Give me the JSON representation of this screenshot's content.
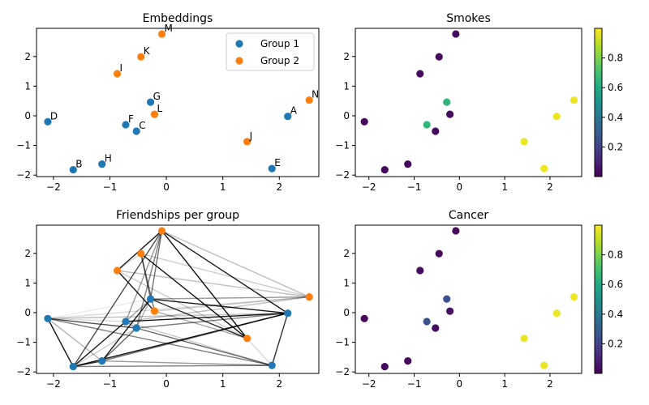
{
  "colors": {
    "group1": "#1f77b4",
    "group2": "#ff7f0e",
    "axis": "#000000",
    "edge": "#000000"
  },
  "colormap": "viridis",
  "chart_data": [
    {
      "id": "embeddings",
      "type": "scatter",
      "title": "Embeddings",
      "xlim": [
        -2.3,
        2.7
      ],
      "ylim": [
        -2.05,
        2.95
      ],
      "xticks": [
        -2,
        -1,
        0,
        1,
        2
      ],
      "yticks": [
        -2,
        -1,
        0,
        1,
        2
      ],
      "legend": {
        "position": "top-right",
        "entries": [
          {
            "label": "Group 1",
            "color_key": "group1"
          },
          {
            "label": "Group 2",
            "color_key": "group2"
          }
        ]
      },
      "show_labels": true
    },
    {
      "id": "smokes",
      "type": "scatter",
      "title": "Smokes",
      "xlim": [
        -2.3,
        2.7
      ],
      "ylim": [
        -2.05,
        2.95
      ],
      "xticks": [
        -2,
        -1,
        0,
        1,
        2
      ],
      "yticks": [
        -2,
        -1,
        0,
        1,
        2
      ],
      "value_key": "smokes",
      "colorbar": {
        "range": [
          0.0,
          1.0
        ],
        "ticks": [
          0.2,
          0.4,
          0.6,
          0.8
        ]
      }
    },
    {
      "id": "friendships",
      "type": "scatter",
      "title": "Friendships per group",
      "xlim": [
        -2.3,
        2.7
      ],
      "ylim": [
        -2.05,
        2.95
      ],
      "xticks": [
        -2,
        -1,
        0,
        1,
        2
      ],
      "yticks": [
        -2,
        -1,
        0,
        1,
        2
      ],
      "show_edges": true
    },
    {
      "id": "cancer",
      "type": "scatter",
      "title": "Cancer",
      "xlim": [
        -2.3,
        2.7
      ],
      "ylim": [
        -2.05,
        2.95
      ],
      "xticks": [
        -2,
        -1,
        0,
        1,
        2
      ],
      "yticks": [
        -2,
        -1,
        0,
        1,
        2
      ],
      "value_key": "cancer",
      "colorbar": {
        "range": [
          0.0,
          1.0
        ],
        "ticks": [
          0.2,
          0.4,
          0.6,
          0.8
        ]
      }
    }
  ],
  "nodes": [
    {
      "id": "A",
      "x": 2.15,
      "y": -0.02,
      "group": 1,
      "smokes": 0.98,
      "cancer": 0.97
    },
    {
      "id": "B",
      "x": -1.65,
      "y": -1.82,
      "group": 1,
      "smokes": 0.02,
      "cancer": 0.02
    },
    {
      "id": "C",
      "x": -0.53,
      "y": -0.52,
      "group": 1,
      "smokes": 0.03,
      "cancer": 0.03
    },
    {
      "id": "D",
      "x": -2.1,
      "y": -0.2,
      "group": 1,
      "smokes": 0.02,
      "cancer": 0.02
    },
    {
      "id": "E",
      "x": 1.87,
      "y": -1.78,
      "group": 1,
      "smokes": 0.98,
      "cancer": 0.97
    },
    {
      "id": "F",
      "x": -0.72,
      "y": -0.3,
      "group": 1,
      "smokes": 0.65,
      "cancer": 0.25
    },
    {
      "id": "G",
      "x": -0.28,
      "y": 0.46,
      "group": 1,
      "smokes": 0.65,
      "cancer": 0.25
    },
    {
      "id": "H",
      "x": -1.14,
      "y": -1.63,
      "group": 1,
      "smokes": 0.02,
      "cancer": 0.02
    },
    {
      "id": "I",
      "x": -0.87,
      "y": 1.42,
      "group": 2,
      "smokes": 0.03,
      "cancer": 0.03
    },
    {
      "id": "J",
      "x": 1.43,
      "y": -0.87,
      "group": 2,
      "smokes": 0.97,
      "cancer": 0.97
    },
    {
      "id": "K",
      "x": -0.45,
      "y": 1.99,
      "group": 2,
      "smokes": 0.03,
      "cancer": 0.03
    },
    {
      "id": "L",
      "x": -0.21,
      "y": 0.05,
      "group": 2,
      "smokes": 0.03,
      "cancer": 0.05
    },
    {
      "id": "M",
      "x": -0.08,
      "y": 2.76,
      "group": 2,
      "smokes": 0.03,
      "cancer": 0.03
    },
    {
      "id": "N",
      "x": 2.53,
      "y": 0.53,
      "group": 2,
      "smokes": 0.98,
      "cancer": 0.98
    }
  ],
  "edges": [
    [
      "M",
      "I",
      0.9
    ],
    [
      "M",
      "J",
      0.95
    ],
    [
      "M",
      "A",
      0.9
    ],
    [
      "M",
      "G",
      0.55
    ],
    [
      "M",
      "C",
      0.5
    ],
    [
      "M",
      "B",
      0.7
    ],
    [
      "M",
      "F",
      0.4
    ],
    [
      "M",
      "N",
      0.25
    ],
    [
      "I",
      "L",
      0.9
    ],
    [
      "I",
      "N",
      0.25
    ],
    [
      "I",
      "J",
      0.2
    ],
    [
      "K",
      "J",
      0.95
    ],
    [
      "K",
      "L",
      0.55
    ],
    [
      "K",
      "G",
      0.55
    ],
    [
      "K",
      "N",
      0.2
    ],
    [
      "K",
      "I",
      0.15
    ],
    [
      "N",
      "G",
      0.4
    ],
    [
      "N",
      "F",
      0.25
    ],
    [
      "N",
      "D",
      0.15
    ],
    [
      "N",
      "L",
      0.2
    ],
    [
      "L",
      "J",
      0.35
    ],
    [
      "G",
      "J",
      0.8
    ],
    [
      "G",
      "A",
      0.9
    ],
    [
      "G",
      "F",
      0.35
    ],
    [
      "G",
      "C",
      0.3
    ],
    [
      "A",
      "B",
      0.95
    ],
    [
      "A",
      "E",
      0.8
    ],
    [
      "A",
      "F",
      0.9
    ],
    [
      "A",
      "C",
      0.5
    ],
    [
      "A",
      "D",
      0.25
    ],
    [
      "A",
      "H",
      0.6
    ],
    [
      "D",
      "B",
      0.95
    ],
    [
      "D",
      "C",
      0.7
    ],
    [
      "D",
      "E",
      0.5
    ],
    [
      "D",
      "H",
      0.3
    ],
    [
      "D",
      "F",
      0.15
    ],
    [
      "B",
      "F",
      0.9
    ],
    [
      "B",
      "H",
      0.8
    ],
    [
      "B",
      "E",
      0.5
    ],
    [
      "B",
      "C",
      0.2
    ],
    [
      "H",
      "G",
      0.9
    ],
    [
      "H",
      "C",
      0.6
    ],
    [
      "H",
      "E",
      0.4
    ],
    [
      "C",
      "E",
      0.6
    ],
    [
      "C",
      "F",
      0.4
    ],
    [
      "F",
      "E",
      0.2
    ],
    [
      "D",
      "G",
      0.08
    ],
    [
      "J",
      "E",
      0.15
    ]
  ]
}
